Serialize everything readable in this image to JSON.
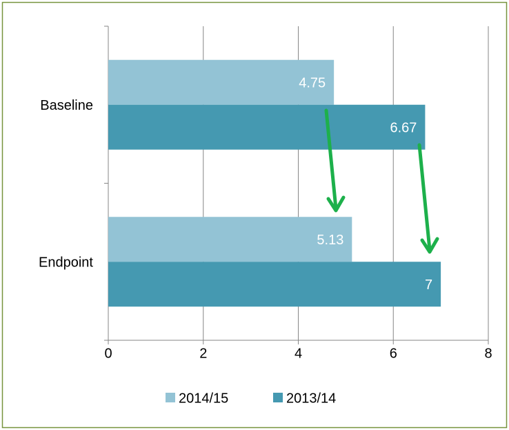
{
  "chart_data": {
    "type": "hbar",
    "categories": [
      "Baseline",
      "Endpoint"
    ],
    "series": [
      {
        "name": "2014/15",
        "color": "#93c3d5",
        "values": [
          4.75,
          5.13
        ]
      },
      {
        "name": "2013/14",
        "color": "#4599b1",
        "values": [
          6.67,
          7
        ]
      }
    ],
    "xlim": [
      0,
      8
    ],
    "xticks": [
      0,
      2,
      4,
      6,
      8
    ],
    "grid": true,
    "legend": "bottom"
  }
}
